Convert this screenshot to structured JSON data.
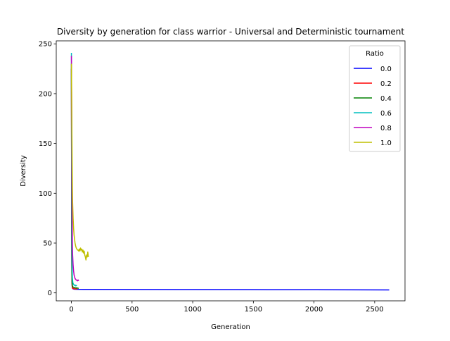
{
  "chart_data": {
    "type": "line",
    "title": "Diversity by generation for class warrior - Universal and Deterministic tournament",
    "xlabel": "Generation",
    "ylabel": "Diversity",
    "xlim": [
      -125,
      2750
    ],
    "ylim": [
      -8,
      253
    ],
    "xticks": [
      0,
      500,
      1000,
      1500,
      2000,
      2500
    ],
    "yticks": [
      0,
      50,
      100,
      150,
      200,
      250
    ],
    "grid": false,
    "legend": {
      "title": "Ratio",
      "placement": "top-right"
    },
    "series": [
      {
        "name": "0.0",
        "color": "#0000ff",
        "x": [
          0,
          2,
          4,
          6,
          8,
          12,
          20,
          40,
          100,
          500,
          1000,
          1500,
          2000,
          2620
        ],
        "y": [
          225,
          60,
          18,
          8,
          5,
          4.2,
          3.8,
          3.6,
          3.5,
          3.4,
          3.3,
          3.2,
          3.1,
          3.0
        ]
      },
      {
        "name": "0.2",
        "color": "#ff0000",
        "x": [
          0,
          2,
          4,
          6,
          8,
          12,
          20,
          30,
          40,
          50
        ],
        "y": [
          225,
          55,
          14,
          7,
          5,
          4.5,
          4.2,
          4,
          4,
          4
        ]
      },
      {
        "name": "0.4",
        "color": "#008000",
        "x": [
          0,
          2,
          4,
          6,
          8,
          12,
          20,
          30,
          40,
          50,
          60
        ],
        "y": [
          230,
          70,
          20,
          10,
          7,
          6,
          5.5,
          5,
          5,
          4.8,
          4.5
        ]
      },
      {
        "name": "0.6",
        "color": "#00bfbf",
        "x": [
          0,
          2,
          4,
          6,
          8,
          12,
          16,
          20,
          25,
          30,
          35,
          40,
          45
        ],
        "y": [
          241,
          120,
          50,
          25,
          15,
          10,
          9,
          8,
          7.5,
          8,
          7,
          7.5,
          7
        ]
      },
      {
        "name": "0.8",
        "color": "#bf00bf",
        "x": [
          0,
          2,
          4,
          6,
          8,
          10,
          14,
          18,
          22,
          26,
          30,
          35,
          40,
          45,
          50,
          55,
          60
        ],
        "y": [
          238,
          180,
          110,
          70,
          48,
          38,
          28,
          22,
          18,
          16,
          14.5,
          13.5,
          13,
          12.5,
          12,
          13,
          12
        ]
      },
      {
        "name": "1.0",
        "color": "#bfbf00",
        "x": [
          0,
          2,
          4,
          6,
          8,
          10,
          14,
          18,
          22,
          26,
          30,
          35,
          40,
          45,
          50,
          55,
          60,
          65,
          70,
          75,
          80,
          85,
          90,
          95,
          100,
          105,
          110,
          115,
          120,
          125,
          130,
          135,
          140
        ],
        "y": [
          230,
          200,
          160,
          130,
          105,
          90,
          75,
          65,
          58,
          54,
          50,
          47,
          45,
          44,
          43,
          43,
          42,
          44,
          42,
          45,
          43,
          44,
          41,
          43,
          40,
          42,
          38,
          36,
          33,
          38,
          36,
          41,
          36
        ]
      }
    ]
  }
}
